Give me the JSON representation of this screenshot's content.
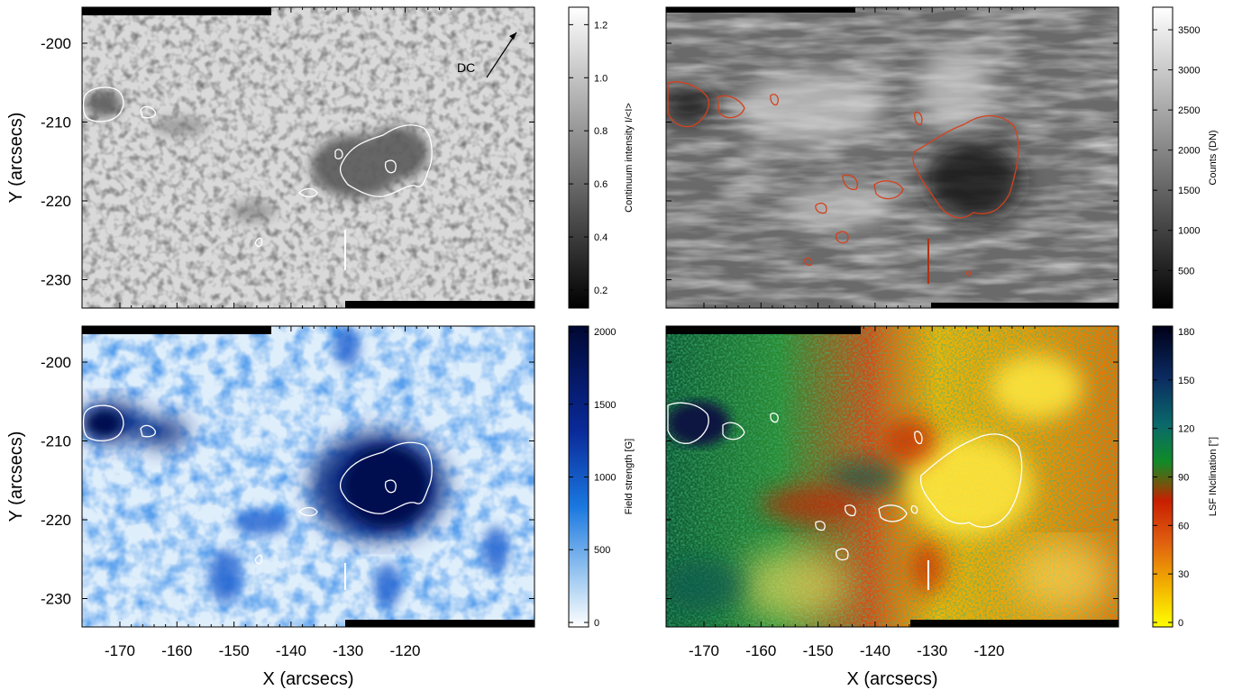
{
  "panels": [
    {
      "id": "continuum",
      "colormap": "gray",
      "annotation": {
        "label": "DC",
        "arrow": "north-east"
      }
    },
    {
      "id": "counts",
      "colormap": "gray-dark"
    },
    {
      "id": "field-strength",
      "colormap": "blue"
    },
    {
      "id": "inclination",
      "colormap": "rainbow"
    }
  ],
  "axes": {
    "x_label": "X (arcsecs)",
    "y_label": "Y (arcsecs)",
    "x_ticks": [
      "-170",
      "-160",
      "-150",
      "-140",
      "-130",
      "-120"
    ],
    "y_ticks": [
      "-200",
      "-210",
      "-220",
      "-230"
    ]
  },
  "colorbars": [
    {
      "title": "Continuum intensity I/<I>",
      "ticks": [
        "1.2",
        "1.0",
        "0.8",
        "0.6",
        "0.4",
        "0.2"
      ]
    },
    {
      "title": "Counts (DN)",
      "ticks": [
        "3500",
        "3000",
        "2500",
        "2000",
        "1500",
        "1000",
        "500"
      ]
    },
    {
      "title": "Field strength [G]",
      "ticks": [
        "2000",
        "1500",
        "1000",
        "500",
        "0"
      ]
    },
    {
      "title": "LSF INclination [°]",
      "ticks": [
        "180",
        "150",
        "120",
        "90",
        "60",
        "30",
        "0"
      ]
    }
  ],
  "colors": {
    "contour_white": "#ffffff",
    "contour_red": "#d5401c",
    "blue_dark": "#000a50",
    "blue_mid": "#1a6fe0",
    "incl_yellow": "#ffdd00",
    "incl_red": "#d21e00",
    "incl_green": "#0a8a2a",
    "incl_navy": "#0a1840"
  }
}
